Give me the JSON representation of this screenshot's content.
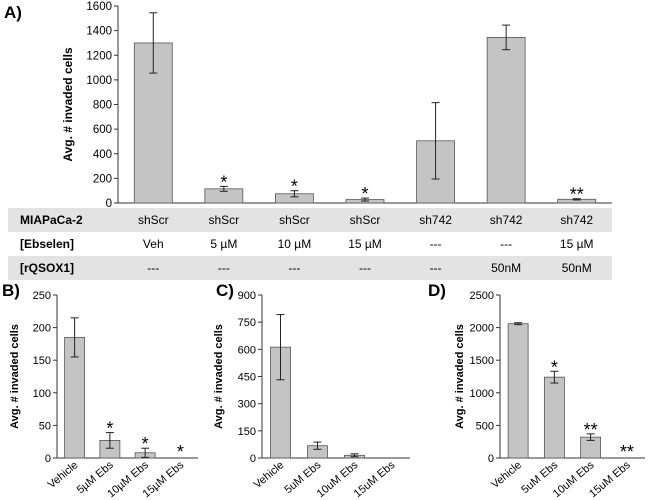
{
  "figure": {
    "colors": {
      "bar_fill": "#c4c4c4",
      "bar_stroke": "#555555",
      "axis": "#333333",
      "table_shade": "#e3e3e3",
      "text": "#000000"
    }
  },
  "chart_data": [
    {
      "id": "A",
      "panel_label": "A)",
      "type": "bar",
      "ylabel": "Avg. # invaded cells",
      "ylim": [
        0,
        1600
      ],
      "yticks": [
        0,
        200,
        400,
        600,
        800,
        1000,
        1200,
        1400,
        1600
      ],
      "categories": [
        "shScr Veh",
        "shScr 5 µM",
        "shScr 10 µM",
        "shScr 15 µM",
        "sh742",
        "sh742 50nM",
        "sh742 15 µM 50nM"
      ],
      "values": [
        1300,
        115,
        75,
        28,
        505,
        1345,
        30
      ],
      "errors": [
        245,
        20,
        25,
        12,
        310,
        100,
        5
      ],
      "annotations": [
        "",
        "*",
        "*",
        "*",
        "",
        "",
        "**"
      ],
      "table": [
        {
          "label": "MIAPaCa-2",
          "cells": [
            "shScr",
            "shScr",
            "shScr",
            "shScr",
            "sh742",
            "sh742",
            "sh742"
          ]
        },
        {
          "label": "[Ebselen]",
          "cells": [
            "Veh",
            "5 µM",
            "10 µM",
            "15 µM",
            "---",
            "---",
            "15 µM"
          ]
        },
        {
          "label": "[rQSOX1]",
          "cells": [
            "---",
            "---",
            "---",
            "---",
            "---",
            "50nM",
            "50nM"
          ]
        }
      ]
    },
    {
      "id": "B",
      "panel_label": "B)",
      "type": "bar",
      "ylabel": "Avg. # invaded cells",
      "ylim": [
        0,
        250
      ],
      "yticks": [
        0,
        50,
        100,
        150,
        200,
        250
      ],
      "categories": [
        "Vehicle",
        "5µM Ebs",
        "10µM Ebs",
        "15µM Ebs"
      ],
      "values": [
        185,
        27,
        8,
        0
      ],
      "errors": [
        30,
        12,
        7,
        0
      ],
      "annotations": [
        "",
        "*",
        "*",
        "*"
      ]
    },
    {
      "id": "C",
      "panel_label": "C)",
      "type": "bar",
      "ylabel": "Avg. # invaded cells",
      "ylim": [
        0,
        900
      ],
      "yticks": [
        0,
        150,
        300,
        450,
        600,
        750,
        900
      ],
      "categories": [
        "Vehicle",
        "5uM Ebs",
        "10uM Ebs",
        "15uM Ebs"
      ],
      "values": [
        612,
        68,
        15,
        0
      ],
      "errors": [
        180,
        20,
        8,
        0
      ],
      "annotations": [
        "",
        "",
        "",
        ""
      ]
    },
    {
      "id": "D",
      "panel_label": "D)",
      "type": "bar",
      "ylabel": "Avg. # invaded cells",
      "ylim": [
        0,
        2500
      ],
      "yticks": [
        0,
        500,
        1000,
        1500,
        2000,
        2500
      ],
      "categories": [
        "Vehicle",
        "5uM Ebs",
        "10uM Ebs",
        "15uM Ebs"
      ],
      "values": [
        2060,
        1240,
        320,
        0
      ],
      "errors": [
        15,
        90,
        50,
        0
      ],
      "annotations": [
        "",
        "*",
        "**",
        "**"
      ]
    }
  ]
}
